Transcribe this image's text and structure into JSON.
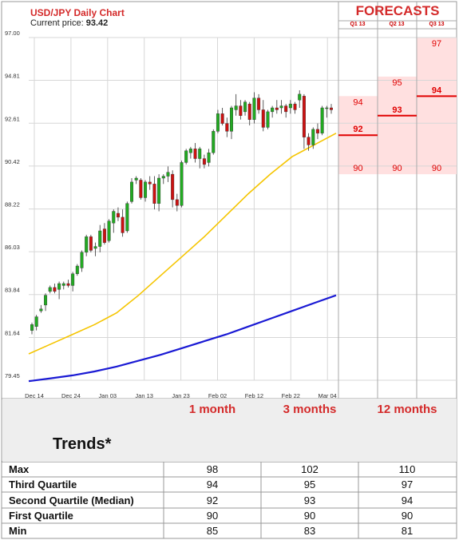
{
  "header": {
    "title": "USD/JPY Daily Chart",
    "price_label": "Current price:",
    "price_value": "93.42"
  },
  "forecasts": {
    "title": "FORECASTS",
    "quarters": [
      "Q1 13",
      "Q2 13",
      "Q3 13"
    ],
    "columns": [
      {
        "quarter": "Q1 13",
        "high": 94,
        "mid": 92,
        "low": 90
      },
      {
        "quarter": "Q2 13",
        "high": 95,
        "mid": 93,
        "low": 90
      },
      {
        "quarter": "Q3 13",
        "high": 97,
        "mid": 94,
        "low": 90
      }
    ],
    "colors": {
      "title": "#d42a2a",
      "fill": "#ffe0e0",
      "line": "#e00000"
    }
  },
  "chart_data": {
    "type": "candlestick",
    "ylim": [
      79.45,
      97.0
    ],
    "y_ticks": [
      "97.00",
      "94.81",
      "92.61",
      "90.42",
      "88.22",
      "86.03",
      "83.84",
      "81.64",
      "79.45"
    ],
    "x_ticks": [
      "Dec 14",
      "Dec 24",
      "Jan 03",
      "Jan 13",
      "Jan 23",
      "Feb 02",
      "Feb 12",
      "Feb 22",
      "Mar 04"
    ],
    "candles": [
      {
        "o": 82.0,
        "h": 82.4,
        "l": 81.8,
        "c": 82.3
      },
      {
        "o": 82.2,
        "h": 82.8,
        "l": 82.0,
        "c": 82.7
      },
      {
        "o": 83.0,
        "h": 83.3,
        "l": 82.9,
        "c": 83.1
      },
      {
        "o": 83.3,
        "h": 83.9,
        "l": 83.0,
        "c": 83.8
      },
      {
        "o": 84.0,
        "h": 84.3,
        "l": 83.9,
        "c": 84.2
      },
      {
        "o": 84.2,
        "h": 84.4,
        "l": 83.9,
        "c": 84.0
      },
      {
        "o": 84.1,
        "h": 84.5,
        "l": 83.6,
        "c": 84.4
      },
      {
        "o": 84.3,
        "h": 84.5,
        "l": 84.1,
        "c": 84.4
      },
      {
        "o": 84.4,
        "h": 84.6,
        "l": 84.2,
        "c": 84.3
      },
      {
        "o": 84.3,
        "h": 85.0,
        "l": 84.0,
        "c": 84.9
      },
      {
        "o": 84.9,
        "h": 85.4,
        "l": 84.8,
        "c": 85.3
      },
      {
        "o": 85.2,
        "h": 86.1,
        "l": 85.0,
        "c": 86.0
      },
      {
        "o": 86.0,
        "h": 86.9,
        "l": 85.8,
        "c": 86.8
      },
      {
        "o": 86.8,
        "h": 86.9,
        "l": 86.0,
        "c": 86.1
      },
      {
        "o": 86.2,
        "h": 86.5,
        "l": 85.8,
        "c": 86.3
      },
      {
        "o": 86.3,
        "h": 87.4,
        "l": 86.0,
        "c": 87.1
      },
      {
        "o": 87.2,
        "h": 87.5,
        "l": 86.4,
        "c": 86.5
      },
      {
        "o": 86.6,
        "h": 87.7,
        "l": 86.5,
        "c": 87.6
      },
      {
        "o": 87.5,
        "h": 88.2,
        "l": 87.0,
        "c": 88.1
      },
      {
        "o": 88.0,
        "h": 88.3,
        "l": 87.6,
        "c": 87.8
      },
      {
        "o": 87.8,
        "h": 88.2,
        "l": 86.8,
        "c": 87.0
      },
      {
        "o": 87.1,
        "h": 88.6,
        "l": 87.0,
        "c": 88.5
      },
      {
        "o": 88.6,
        "h": 89.8,
        "l": 88.5,
        "c": 89.6
      },
      {
        "o": 89.7,
        "h": 89.9,
        "l": 89.5,
        "c": 89.8
      },
      {
        "o": 89.7,
        "h": 89.8,
        "l": 88.7,
        "c": 88.8
      },
      {
        "o": 88.8,
        "h": 89.7,
        "l": 88.6,
        "c": 89.6
      },
      {
        "o": 89.6,
        "h": 89.9,
        "l": 89.2,
        "c": 89.5
      },
      {
        "o": 89.5,
        "h": 89.9,
        "l": 88.2,
        "c": 88.5
      },
      {
        "o": 88.5,
        "h": 90.0,
        "l": 88.1,
        "c": 89.8
      },
      {
        "o": 89.8,
        "h": 90.0,
        "l": 89.5,
        "c": 89.9
      },
      {
        "o": 89.9,
        "h": 90.4,
        "l": 89.6,
        "c": 90.1
      },
      {
        "o": 90.0,
        "h": 90.2,
        "l": 88.3,
        "c": 88.7
      },
      {
        "o": 88.7,
        "h": 89.0,
        "l": 88.1,
        "c": 88.4
      },
      {
        "o": 88.4,
        "h": 90.7,
        "l": 88.3,
        "c": 90.6
      },
      {
        "o": 90.6,
        "h": 91.3,
        "l": 90.5,
        "c": 91.2
      },
      {
        "o": 91.1,
        "h": 91.4,
        "l": 90.8,
        "c": 91.3
      },
      {
        "o": 91.3,
        "h": 91.6,
        "l": 90.6,
        "c": 90.8
      },
      {
        "o": 90.8,
        "h": 91.4,
        "l": 90.3,
        "c": 91.3
      },
      {
        "o": 90.8,
        "h": 91.0,
        "l": 90.3,
        "c": 90.5
      },
      {
        "o": 90.6,
        "h": 91.3,
        "l": 90.4,
        "c": 91.1
      },
      {
        "o": 91.1,
        "h": 92.3,
        "l": 91.0,
        "c": 92.2
      },
      {
        "o": 92.2,
        "h": 93.3,
        "l": 92.1,
        "c": 93.1
      },
      {
        "o": 93.1,
        "h": 93.4,
        "l": 92.5,
        "c": 92.6
      },
      {
        "o": 92.6,
        "h": 92.9,
        "l": 91.9,
        "c": 92.2
      },
      {
        "o": 92.2,
        "h": 93.5,
        "l": 91.8,
        "c": 93.4
      },
      {
        "o": 93.3,
        "h": 94.1,
        "l": 93.0,
        "c": 93.5
      },
      {
        "o": 93.5,
        "h": 93.8,
        "l": 92.8,
        "c": 93.0
      },
      {
        "o": 93.2,
        "h": 93.8,
        "l": 93.0,
        "c": 93.7
      },
      {
        "o": 93.6,
        "h": 93.7,
        "l": 92.5,
        "c": 92.8
      },
      {
        "o": 92.8,
        "h": 94.2,
        "l": 92.6,
        "c": 93.9
      },
      {
        "o": 93.9,
        "h": 94.1,
        "l": 93.1,
        "c": 93.3
      },
      {
        "o": 93.3,
        "h": 93.8,
        "l": 92.2,
        "c": 92.4
      },
      {
        "o": 92.4,
        "h": 93.3,
        "l": 92.3,
        "c": 93.2
      },
      {
        "o": 93.2,
        "h": 93.5,
        "l": 92.9,
        "c": 93.4
      },
      {
        "o": 93.4,
        "h": 93.8,
        "l": 93.1,
        "c": 93.3
      },
      {
        "o": 93.4,
        "h": 93.8,
        "l": 93.1,
        "c": 93.5
      },
      {
        "o": 93.5,
        "h": 93.6,
        "l": 92.9,
        "c": 93.2
      },
      {
        "o": 93.4,
        "h": 93.8,
        "l": 93.1,
        "c": 93.6
      },
      {
        "o": 93.6,
        "h": 93.7,
        "l": 93.1,
        "c": 93.3
      },
      {
        "o": 93.8,
        "h": 94.3,
        "l": 93.4,
        "c": 94.1
      },
      {
        "o": 94.0,
        "h": 94.1,
        "l": 91.3,
        "c": 91.9
      },
      {
        "o": 91.9,
        "h": 92.1,
        "l": 91.2,
        "c": 91.5
      },
      {
        "o": 91.5,
        "h": 92.4,
        "l": 91.3,
        "c": 92.3
      },
      {
        "o": 92.3,
        "h": 92.6,
        "l": 91.8,
        "c": 92.1
      },
      {
        "o": 92.1,
        "h": 93.5,
        "l": 92.0,
        "c": 93.4
      },
      {
        "o": 93.4,
        "h": 93.5,
        "l": 92.9,
        "c": 93.4
      },
      {
        "o": 93.4,
        "h": 93.6,
        "l": 93.1,
        "c": 93.3
      }
    ],
    "ma_short": [
      80.8,
      81.3,
      81.8,
      82.3,
      82.9,
      83.8,
      84.8,
      85.8,
      86.8,
      87.9,
      89.0,
      90.0,
      90.9,
      91.5,
      92.1
    ],
    "ma_long": [
      79.4,
      79.55,
      79.7,
      79.9,
      80.15,
      80.45,
      80.75,
      81.1,
      81.45,
      81.8,
      82.2,
      82.6,
      83.0,
      83.4,
      83.8
    ],
    "colors": {
      "up": "#22aa22",
      "down": "#cc1111",
      "ma_short": "#f5c500",
      "ma_long": "#1a1ad4",
      "grid": "#d7d7d7"
    }
  },
  "trends": {
    "label": "Trends*",
    "columns": [
      {
        "label": "1 month",
        "badge": "1"
      },
      {
        "label": "3 months",
        "badge": "3"
      },
      {
        "label": "12 months",
        "badge": "12"
      }
    ],
    "rows": [
      {
        "label": "Max",
        "values": [
          "98",
          "102",
          "110"
        ]
      },
      {
        "label": "Third Quartile",
        "values": [
          "94",
          "95",
          "97"
        ]
      },
      {
        "label": "Second Quartile (Median)",
        "values": [
          "92",
          "93",
          "94"
        ]
      },
      {
        "label": "First Quartile",
        "values": [
          "90",
          "90",
          "90"
        ]
      },
      {
        "label": "Min",
        "values": [
          "85",
          "83",
          "81"
        ]
      }
    ]
  }
}
